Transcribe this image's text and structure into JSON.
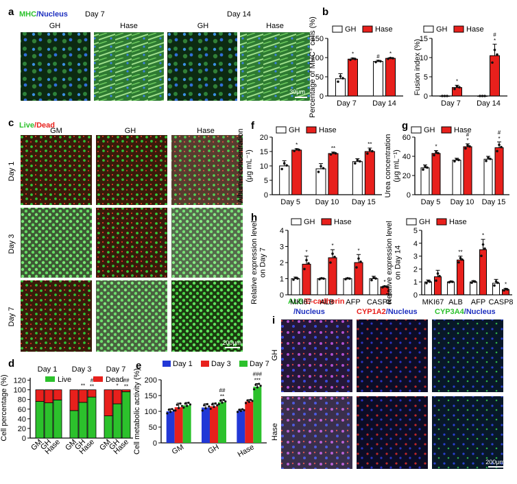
{
  "panels": {
    "a": {
      "letter": "a",
      "stain_label_1": "MHC",
      "stain_label_sep": "/",
      "stain_label_2": "Nucleus",
      "day_labels": [
        "Day 7",
        "Day 14"
      ],
      "group_labels": [
        "GH",
        "Hase",
        "GH",
        "Hase"
      ],
      "scale_bar": "30μm"
    },
    "c": {
      "letter": "c",
      "stain_label_1": "Live",
      "stain_label_sep": "/",
      "stain_label_2": "Dead",
      "col_labels": [
        "GM",
        "GH",
        "Hase"
      ],
      "row_labels": [
        "Day 1",
        "Day 3",
        "Day 7"
      ],
      "scale_bar": "200μm"
    },
    "i": {
      "letter": "i",
      "stain_labels": [
        {
          "a": "ALB",
          "sep": "/",
          "b": "E-cadherin",
          "c": "/Nucleus"
        },
        {
          "a": "CYP1A2",
          "sep": "/",
          "b": "Nucleus"
        },
        {
          "a": "CYP3A4",
          "sep": "/",
          "b": "Nucleus"
        }
      ],
      "row_labels": [
        "GH",
        "Hase"
      ],
      "scale_bar": "200μm"
    }
  },
  "colors": {
    "gh": "#ffffff",
    "hase": "#e8201c",
    "day1": "#2238d6",
    "day3": "#e8201c",
    "day7": "#2cc12c",
    "live": "#2cc12c",
    "dead": "#e8201c"
  },
  "chart_data": [
    {
      "id": "b1",
      "letter": "b",
      "type": "bar",
      "categories": [
        "Day 7",
        "Day 14"
      ],
      "series": [
        {
          "name": "GH",
          "values": [
            45,
            90
          ]
        },
        {
          "name": "Hase",
          "values": [
            96,
            98
          ]
        }
      ],
      "errors": [
        [
          13,
          3
        ],
        [
          3,
          2
        ]
      ],
      "marks": [
        [
          "",
          "#"
        ],
        [
          "*",
          "*"
        ]
      ],
      "ylabel": "Percentage of MHC⁺ cells (%)",
      "ylim": [
        0,
        150
      ],
      "yticks": [
        0,
        50,
        100,
        150
      ],
      "legend": [
        "GH",
        "Hase"
      ]
    },
    {
      "id": "b2",
      "letter": "",
      "type": "bar",
      "categories": [
        "Day 7",
        "Day 14"
      ],
      "series": [
        {
          "name": "GH",
          "values": [
            0,
            0
          ]
        },
        {
          "name": "Hase",
          "values": [
            2.2,
            10.5
          ]
        }
      ],
      "errors": [
        [
          0,
          0
        ],
        [
          0.6,
          3.0
        ]
      ],
      "marks": [
        [
          "",
          ""
        ],
        [
          "*",
          "#\n*"
        ]
      ],
      "ylabel": "Fusion index (%)",
      "ylim": [
        0,
        15
      ],
      "yticks": [
        0,
        5,
        10,
        15
      ],
      "legend": [
        "GH",
        "Hase"
      ]
    },
    {
      "id": "f",
      "letter": "f",
      "type": "bar",
      "categories": [
        "Day 5",
        "Day 10",
        "Day 15"
      ],
      "series": [
        {
          "name": "GH",
          "values": [
            10,
            9,
            11.5
          ]
        },
        {
          "name": "Hase",
          "values": [
            15.5,
            14.3,
            15
          ]
        }
      ],
      "errors": [
        [
          1.8,
          1.8,
          1.0
        ],
        [
          0.5,
          0.5,
          1.2
        ]
      ],
      "marks": [
        [
          "",
          "",
          ""
        ],
        [
          "*",
          "**",
          "**"
        ]
      ],
      "ylabel": "Albumin concentration\n(μg mL⁻¹)",
      "ylim": [
        0,
        20
      ],
      "yticks": [
        0,
        5,
        10,
        15,
        20
      ],
      "legend": [
        "GH",
        "Hase"
      ]
    },
    {
      "id": "g",
      "letter": "g",
      "type": "bar",
      "categories": [
        "Day 5",
        "Day 10",
        "Day 15"
      ],
      "series": [
        {
          "name": "GH",
          "values": [
            28,
            36,
            37
          ]
        },
        {
          "name": "Hase",
          "values": [
            43,
            50,
            49
          ]
        }
      ],
      "errors": [
        [
          3,
          2,
          3
        ],
        [
          3,
          3,
          6
        ]
      ],
      "marks": [
        [
          "",
          "",
          ""
        ],
        [
          "*",
          "#\n*",
          "#\n*"
        ]
      ],
      "ylabel": "Urea concentration\n(μg mL⁻¹)",
      "ylim": [
        0,
        60
      ],
      "yticks": [
        0,
        20,
        40,
        60
      ],
      "legend": [
        "GH",
        "Hase"
      ]
    },
    {
      "id": "h1",
      "letter": "h",
      "type": "bar",
      "categories": [
        "MKI67",
        "ALB",
        "AFP",
        "CASP8"
      ],
      "series": [
        {
          "name": "GH",
          "values": [
            1,
            1,
            1,
            1
          ]
        },
        {
          "name": "Hase",
          "values": [
            1.9,
            2.3,
            2.0,
            0.5
          ]
        }
      ],
      "errors": [
        [
          0.1,
          0.05,
          0.05,
          0.15
        ],
        [
          0.5,
          0.5,
          0.5,
          0.05
        ]
      ],
      "marks": [
        [
          "",
          "",
          "",
          ""
        ],
        [
          "*",
          "*",
          "*",
          "*"
        ]
      ],
      "ylabel": "Relative expression level\non Day 7",
      "ylim": [
        0,
        4
      ],
      "yticks": [
        0,
        1,
        2,
        3,
        4
      ],
      "legend": [
        "GH",
        "Hase"
      ]
    },
    {
      "id": "h2",
      "letter": "",
      "type": "bar",
      "categories": [
        "MKI67",
        "ALB",
        "AFP",
        "CASP8"
      ],
      "series": [
        {
          "name": "GH",
          "values": [
            1,
            1,
            1,
            0.9
          ]
        },
        {
          "name": "Hase",
          "values": [
            1.4,
            2.7,
            3.5,
            0.4
          ]
        }
      ],
      "errors": [
        [
          0.15,
          0.05,
          0.1,
          0.3
        ],
        [
          0.5,
          0.3,
          0.8,
          0.1
        ]
      ],
      "marks": [
        [
          "",
          "",
          "",
          ""
        ],
        [
          "",
          "**",
          "*",
          "*"
        ]
      ],
      "ylabel": "Relative expression level\non Day 14",
      "ylim": [
        0,
        5
      ],
      "yticks": [
        0,
        1,
        2,
        3,
        4,
        5
      ],
      "legend": [
        "GH",
        "Hase"
      ]
    },
    {
      "id": "d",
      "letter": "d",
      "type": "bar",
      "stacked": true,
      "day_groups": [
        "Day 1",
        "Day 3",
        "Day 7"
      ],
      "categories": [
        "GM",
        "GH",
        "Hase"
      ],
      "series": [
        {
          "name": "Live",
          "values": [
            [
              76,
              73,
              79
            ],
            [
              57,
              74,
              85
            ],
            [
              46,
              71,
              96
            ]
          ]
        },
        {
          "name": "Dead",
          "values": [
            [
              24,
              27,
              21
            ],
            [
              43,
              26,
              15
            ],
            [
              54,
              29,
              4
            ]
          ]
        }
      ],
      "marks": [
        [
          "",
          "",
          ""
        ],
        [
          "",
          "**",
          "#\n**"
        ],
        [
          "",
          "*",
          "##\n**"
        ]
      ],
      "ylabel": "Cell percentage (%)",
      "ylim": [
        0,
        125
      ],
      "yticks": [
        0,
        20,
        40,
        60,
        80,
        100,
        120
      ],
      "legend": [
        "Live",
        "Dead"
      ]
    },
    {
      "id": "e",
      "letter": "e",
      "type": "bar",
      "categories": [
        "GM",
        "GH",
        "Hase"
      ],
      "series": [
        {
          "name": "Day 1",
          "values": [
            100,
            112,
            102
          ]
        },
        {
          "name": "Day 3",
          "values": [
            113,
            116,
            131
          ]
        },
        {
          "name": "Day 7",
          "values": [
            119,
            129,
            178
          ]
        }
      ],
      "errors": [
        [
          8,
          12,
          5
        ],
        [
          13,
          10,
          6
        ],
        [
          9,
          8,
          10
        ]
      ],
      "marks": [
        [
          "",
          "",
          ""
        ],
        [
          "",
          "",
          ""
        ],
        [
          "",
          "##\n**",
          "###\n***"
        ]
      ],
      "ylabel": "Cell metabolic activity (%)",
      "ylim": [
        0,
        200
      ],
      "yticks": [
        0,
        50,
        100,
        150,
        200
      ],
      "legend": [
        "Day 1",
        "Day 3",
        "Day 7"
      ]
    }
  ]
}
